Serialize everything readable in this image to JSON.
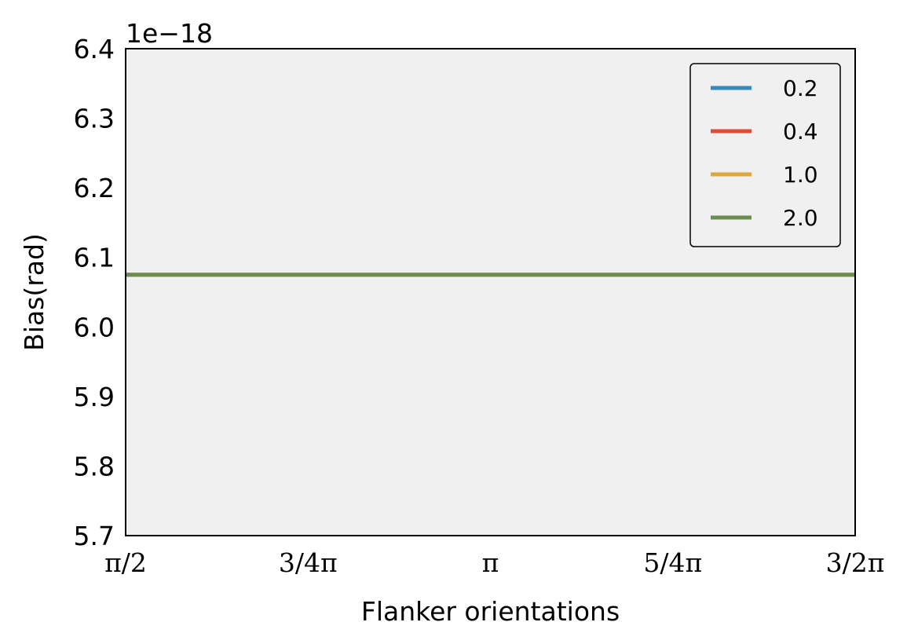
{
  "chart_data": {
    "type": "line",
    "title": "",
    "xlabel": "Flanker orientations",
    "ylabel": "Bias(rad)",
    "y_offset_label": "1e−18",
    "x_ticks": [
      {
        "value": 1.5708,
        "label": "π/2"
      },
      {
        "value": 2.3562,
        "label": "3/4π"
      },
      {
        "value": 3.1416,
        "label": "π"
      },
      {
        "value": 3.927,
        "label": "5/4π"
      },
      {
        "value": 4.7124,
        "label": "3/2π"
      }
    ],
    "y_ticks": [
      {
        "value": 5.7,
        "label": "5.7"
      },
      {
        "value": 5.8,
        "label": "5.8"
      },
      {
        "value": 5.9,
        "label": "5.9"
      },
      {
        "value": 6.0,
        "label": "6.0"
      },
      {
        "value": 6.1,
        "label": "6.1"
      },
      {
        "value": 6.2,
        "label": "6.2"
      },
      {
        "value": 6.3,
        "label": "6.3"
      },
      {
        "value": 6.4,
        "label": "6.4"
      }
    ],
    "xlim": [
      1.5708,
      4.7124
    ],
    "ylim": [
      5.7,
      6.4
    ],
    "legend_position": "top-right",
    "grid": false,
    "series": [
      {
        "name": "0.2",
        "color": "#348ABD",
        "x": [
          1.5708,
          4.7124
        ],
        "y": [
          6.075,
          6.075
        ]
      },
      {
        "name": "0.4",
        "color": "#E24A33",
        "x": [
          1.5708,
          4.7124
        ],
        "y": [
          6.075,
          6.075
        ]
      },
      {
        "name": "1.0",
        "color": "#E0A83A",
        "x": [
          1.5708,
          4.7124
        ],
        "y": [
          6.075,
          6.075
        ]
      },
      {
        "name": "2.0",
        "color": "#6B8E4E",
        "x": [
          1.5708,
          4.7124
        ],
        "y": [
          6.075,
          6.075
        ]
      }
    ]
  },
  "colors": {
    "plot_background": "#F0F0F0",
    "axes": "#000000"
  }
}
